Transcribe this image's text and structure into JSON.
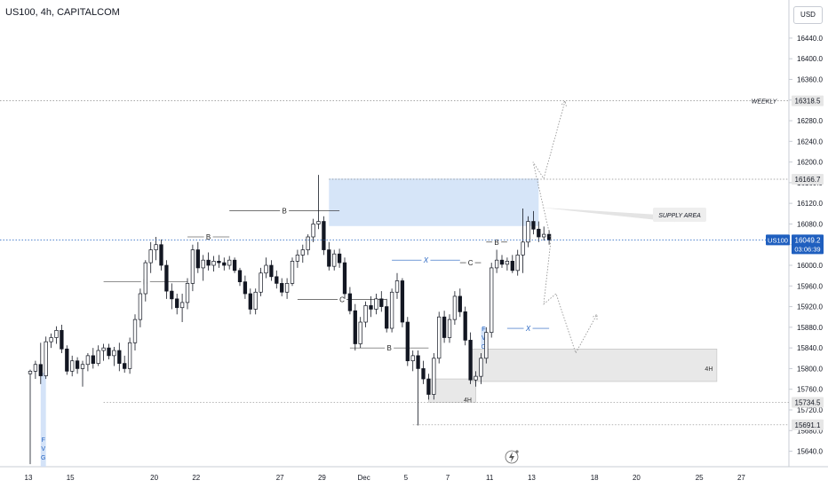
{
  "header": {
    "title": "US100, 4h, CAPITALCOM",
    "currency": "USD"
  },
  "chart_data": {
    "type": "candlestick",
    "symbol": "US100",
    "timeframe": "4h",
    "broker": "CAPITALCOM",
    "ylim": [
      15610,
      16500
    ],
    "y_ticks": [
      16440,
      16400,
      16360,
      16320,
      16280,
      16240,
      16200,
      16160,
      16120,
      16080,
      16040,
      16000,
      15960,
      15920,
      15880,
      15840,
      15800,
      15760,
      15720,
      15680,
      15640
    ],
    "x_ticks": [
      {
        "label": "13",
        "index": 0
      },
      {
        "label": "15",
        "index": 8
      },
      {
        "label": "20",
        "index": 24
      },
      {
        "label": "22",
        "index": 32
      },
      {
        "label": "27",
        "index": 48
      },
      {
        "label": "29",
        "index": 56
      },
      {
        "label": "Dec",
        "index": 64
      },
      {
        "label": "5",
        "index": 72
      },
      {
        "label": "7",
        "index": 80
      },
      {
        "label": "11",
        "index": 88
      },
      {
        "label": "13",
        "index": 96
      },
      {
        "label": "18",
        "index": 108
      },
      {
        "label": "20",
        "index": 116
      },
      {
        "label": "25",
        "index": 128
      },
      {
        "label": "27",
        "index": 136
      }
    ],
    "candles": [
      {
        "o": 15790,
        "h": 15798,
        "l": 15615,
        "c": 15795
      },
      {
        "o": 15795,
        "h": 15815,
        "l": 15780,
        "c": 15808
      },
      {
        "o": 15808,
        "h": 15850,
        "l": 15770,
        "c": 15786
      },
      {
        "o": 15786,
        "h": 15862,
        "l": 15780,
        "c": 15852
      },
      {
        "o": 15852,
        "h": 15868,
        "l": 15840,
        "c": 15860
      },
      {
        "o": 15860,
        "h": 15882,
        "l": 15848,
        "c": 15874
      },
      {
        "o": 15874,
        "h": 15885,
        "l": 15830,
        "c": 15838
      },
      {
        "o": 15838,
        "h": 15845,
        "l": 15788,
        "c": 15795
      },
      {
        "o": 15795,
        "h": 15825,
        "l": 15785,
        "c": 15815
      },
      {
        "o": 15815,
        "h": 15822,
        "l": 15790,
        "c": 15800
      },
      {
        "o": 15800,
        "h": 15815,
        "l": 15765,
        "c": 15808
      },
      {
        "o": 15808,
        "h": 15830,
        "l": 15795,
        "c": 15825
      },
      {
        "o": 15825,
        "h": 15840,
        "l": 15800,
        "c": 15810
      },
      {
        "o": 15810,
        "h": 15845,
        "l": 15805,
        "c": 15835
      },
      {
        "o": 15835,
        "h": 15848,
        "l": 15815,
        "c": 15840
      },
      {
        "o": 15840,
        "h": 15848,
        "l": 15818,
        "c": 15825
      },
      {
        "o": 15825,
        "h": 15842,
        "l": 15805,
        "c": 15835
      },
      {
        "o": 15835,
        "h": 15850,
        "l": 15795,
        "c": 15810
      },
      {
        "o": 15810,
        "h": 15825,
        "l": 15792,
        "c": 15800
      },
      {
        "o": 15800,
        "h": 15860,
        "l": 15790,
        "c": 15850
      },
      {
        "o": 15850,
        "h": 15905,
        "l": 15835,
        "c": 15895
      },
      {
        "o": 15895,
        "h": 15955,
        "l": 15880,
        "c": 15945
      },
      {
        "o": 15945,
        "h": 16010,
        "l": 15930,
        "c": 16005
      },
      {
        "o": 16005,
        "h": 16045,
        "l": 15985,
        "c": 16030
      },
      {
        "o": 16030,
        "h": 16055,
        "l": 16010,
        "c": 16040
      },
      {
        "o": 16040,
        "h": 16050,
        "l": 15990,
        "c": 16000
      },
      {
        "o": 16000,
        "h": 16010,
        "l": 15935,
        "c": 15950
      },
      {
        "o": 15950,
        "h": 15965,
        "l": 15915,
        "c": 15935
      },
      {
        "o": 15935,
        "h": 15945,
        "l": 15905,
        "c": 15918
      },
      {
        "o": 15918,
        "h": 15945,
        "l": 15890,
        "c": 15928
      },
      {
        "o": 15928,
        "h": 15975,
        "l": 15915,
        "c": 15965
      },
      {
        "o": 15965,
        "h": 16040,
        "l": 15950,
        "c": 16030
      },
      {
        "o": 16030,
        "h": 16045,
        "l": 15985,
        "c": 15995
      },
      {
        "o": 15995,
        "h": 16020,
        "l": 15970,
        "c": 16010
      },
      {
        "o": 16010,
        "h": 16025,
        "l": 15990,
        "c": 16000
      },
      {
        "o": 16000,
        "h": 16018,
        "l": 15988,
        "c": 16008
      },
      {
        "o": 16008,
        "h": 16020,
        "l": 15995,
        "c": 16005
      },
      {
        "o": 16005,
        "h": 16015,
        "l": 15990,
        "c": 16000
      },
      {
        "o": 16000,
        "h": 16018,
        "l": 15992,
        "c": 16010
      },
      {
        "o": 16010,
        "h": 16015,
        "l": 15985,
        "c": 15990
      },
      {
        "o": 15990,
        "h": 15995,
        "l": 15960,
        "c": 15968
      },
      {
        "o": 15968,
        "h": 15980,
        "l": 15935,
        "c": 15945
      },
      {
        "o": 15945,
        "h": 15955,
        "l": 15905,
        "c": 15915
      },
      {
        "o": 15915,
        "h": 15955,
        "l": 15905,
        "c": 15948
      },
      {
        "o": 15948,
        "h": 15995,
        "l": 15940,
        "c": 15985
      },
      {
        "o": 15985,
        "h": 16015,
        "l": 15975,
        "c": 16000
      },
      {
        "o": 16000,
        "h": 16010,
        "l": 15970,
        "c": 15978
      },
      {
        "o": 15978,
        "h": 15990,
        "l": 15955,
        "c": 15965
      },
      {
        "o": 15965,
        "h": 15975,
        "l": 15940,
        "c": 15948
      },
      {
        "o": 15948,
        "h": 15975,
        "l": 15935,
        "c": 15965
      },
      {
        "o": 15965,
        "h": 16015,
        "l": 15960,
        "c": 16008
      },
      {
        "o": 16008,
        "h": 16030,
        "l": 15995,
        "c": 16020
      },
      {
        "o": 16020,
        "h": 16040,
        "l": 16005,
        "c": 16030
      },
      {
        "o": 16030,
        "h": 16060,
        "l": 16020,
        "c": 16055
      },
      {
        "o": 16055,
        "h": 16090,
        "l": 16045,
        "c": 16080
      },
      {
        "o": 16080,
        "h": 16175,
        "l": 16070,
        "c": 16085
      },
      {
        "o": 16085,
        "h": 16095,
        "l": 16020,
        "c": 16030
      },
      {
        "o": 16030,
        "h": 16045,
        "l": 15990,
        "c": 15998
      },
      {
        "o": 15998,
        "h": 16030,
        "l": 15990,
        "c": 16022
      },
      {
        "o": 16022,
        "h": 16032,
        "l": 15995,
        "c": 16005
      },
      {
        "o": 16005,
        "h": 16015,
        "l": 15935,
        "c": 15945
      },
      {
        "o": 15945,
        "h": 15958,
        "l": 15905,
        "c": 15912
      },
      {
        "o": 15912,
        "h": 15925,
        "l": 15835,
        "c": 15848
      },
      {
        "o": 15848,
        "h": 15900,
        "l": 15840,
        "c": 15890
      },
      {
        "o": 15890,
        "h": 15930,
        "l": 15880,
        "c": 15922
      },
      {
        "o": 15922,
        "h": 15940,
        "l": 15900,
        "c": 15915
      },
      {
        "o": 15915,
        "h": 15945,
        "l": 15905,
        "c": 15935
      },
      {
        "o": 15935,
        "h": 15950,
        "l": 15910,
        "c": 15920
      },
      {
        "o": 15920,
        "h": 15935,
        "l": 15870,
        "c": 15878
      },
      {
        "o": 15878,
        "h": 15955,
        "l": 15870,
        "c": 15948
      },
      {
        "o": 15948,
        "h": 15985,
        "l": 15935,
        "c": 15970
      },
      {
        "o": 15970,
        "h": 15975,
        "l": 15880,
        "c": 15890
      },
      {
        "o": 15890,
        "h": 15900,
        "l": 15805,
        "c": 15815
      },
      {
        "o": 15815,
        "h": 15835,
        "l": 15795,
        "c": 15825
      },
      {
        "o": 15825,
        "h": 15835,
        "l": 15690,
        "c": 15800
      },
      {
        "o": 15800,
        "h": 15815,
        "l": 15770,
        "c": 15780
      },
      {
        "o": 15780,
        "h": 15790,
        "l": 15740,
        "c": 15750
      },
      {
        "o": 15750,
        "h": 15830,
        "l": 15740,
        "c": 15820
      },
      {
        "o": 15820,
        "h": 15910,
        "l": 15810,
        "c": 15900
      },
      {
        "o": 15900,
        "h": 15912,
        "l": 15850,
        "c": 15860
      },
      {
        "o": 15860,
        "h": 15905,
        "l": 15850,
        "c": 15895
      },
      {
        "o": 15895,
        "h": 15950,
        "l": 15885,
        "c": 15940
      },
      {
        "o": 15940,
        "h": 15955,
        "l": 15900,
        "c": 15910
      },
      {
        "o": 15910,
        "h": 15920,
        "l": 15845,
        "c": 15855
      },
      {
        "o": 15855,
        "h": 15870,
        "l": 15770,
        "c": 15778
      },
      {
        "o": 15778,
        "h": 15795,
        "l": 15765,
        "c": 15785
      },
      {
        "o": 15785,
        "h": 15830,
        "l": 15770,
        "c": 15820
      },
      {
        "o": 15820,
        "h": 15880,
        "l": 15810,
        "c": 15870
      },
      {
        "o": 15870,
        "h": 16005,
        "l": 15860,
        "c": 15995
      },
      {
        "o": 15995,
        "h": 16030,
        "l": 15985,
        "c": 16010
      },
      {
        "o": 16010,
        "h": 16020,
        "l": 15995,
        "c": 16002
      },
      {
        "o": 16002,
        "h": 16015,
        "l": 15990,
        "c": 16008
      },
      {
        "o": 16008,
        "h": 16020,
        "l": 15985,
        "c": 15990
      },
      {
        "o": 15990,
        "h": 16030,
        "l": 15980,
        "c": 16020
      },
      {
        "o": 16020,
        "h": 16110,
        "l": 15985,
        "c": 16045
      },
      {
        "o": 16045,
        "h": 16095,
        "l": 16035,
        "c": 16085
      },
      {
        "o": 16085,
        "h": 16105,
        "l": 16060,
        "c": 16070
      },
      {
        "o": 16070,
        "h": 16085,
        "l": 16045,
        "c": 16055
      },
      {
        "o": 16055,
        "h": 16075,
        "l": 16048,
        "c": 16060
      },
      {
        "o": 16060,
        "h": 16068,
        "l": 16040,
        "c": 16049
      }
    ],
    "levels": [
      {
        "label": "WEEKLY",
        "price": 16318.5
      },
      {
        "label": "",
        "price": 16166.7
      },
      {
        "label": "",
        "price": 15734.5
      },
      {
        "label": "",
        "price": 15691.1
      }
    ],
    "price_tags": [
      "16318.5",
      "16166.7",
      "15734.5",
      "15691.1"
    ],
    "current_price": {
      "symbol": "US100",
      "price": 16049.2,
      "price_label": "16049.2",
      "countdown": "03:06:39"
    },
    "zones": [
      {
        "label": "SUPPLY AREA",
        "from_index": 57,
        "to_index": 97,
        "low": 16076,
        "high": 16168
      },
      {
        "label": "4H",
        "from_index": 84,
        "to_index": 131,
        "low": 15775,
        "high": 15838
      },
      {
        "label": "4H",
        "from_index": 76,
        "to_index": 85,
        "low": 15735,
        "high": 15780
      },
      {
        "label": "F V G",
        "from_index": 2,
        "to_index": 3,
        "low": 15610,
        "high": 15792
      },
      {
        "label": "F V G",
        "from_index": 86,
        "to_index": 87,
        "low": 15845,
        "high": 15880
      }
    ],
    "structure_lines": [
      {
        "label": "B",
        "from_index": 14,
        "to_index": 30,
        "price": 15968
      },
      {
        "label": "B",
        "from_index": 30,
        "to_index": 38,
        "price": 16055
      },
      {
        "label": "B",
        "from_index": 38,
        "to_index": 59,
        "price": 16106
      },
      {
        "label": "B",
        "from_index": 61,
        "to_index": 76,
        "price": 15840
      },
      {
        "label": "C",
        "from_index": 51,
        "to_index": 68,
        "price": 15934
      },
      {
        "label": "X",
        "from_index": 69,
        "to_index": 82,
        "price": 16010
      },
      {
        "label": "C",
        "from_index": 82,
        "to_index": 86,
        "price": 16005
      },
      {
        "label": "B",
        "from_index": 87,
        "to_index": 91,
        "price": 16045
      },
      {
        "label": "X",
        "from_index": 91,
        "to_index": 99,
        "price": 15878
      }
    ],
    "annotations": [
      "SUPPLY AREA",
      "WEEKLY",
      "4H",
      "4H",
      "F V G",
      "F V G"
    ]
  }
}
